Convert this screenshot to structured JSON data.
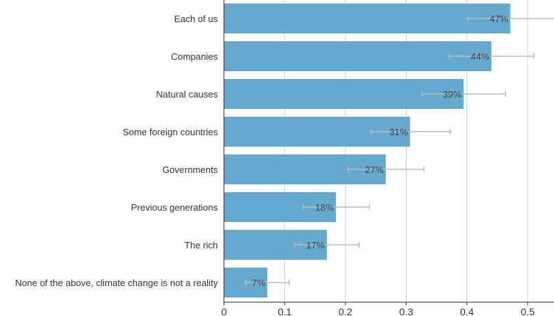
{
  "chart_data": {
    "type": "bar",
    "orientation": "horizontal",
    "categories": [
      "Each of us",
      "Companies",
      "Natural causes",
      "Some foreign countries",
      "Governments",
      "Previous generations",
      "The rich",
      "None of the above, climate change is not a reality"
    ],
    "values": [
      0.472,
      0.441,
      0.395,
      0.307,
      0.267,
      0.185,
      0.17,
      0.072
    ],
    "data_labels": [
      "47%",
      "44%",
      "39%",
      "31%",
      "27%",
      "18%",
      "17%",
      "7%"
    ],
    "error_low": [
      0.402,
      0.372,
      0.327,
      0.243,
      0.205,
      0.131,
      0.117,
      0.036
    ],
    "error_high": [
      0.545,
      0.511,
      0.464,
      0.373,
      0.33,
      0.24,
      0.223,
      0.108
    ],
    "xlim": [
      0,
      0.54
    ],
    "x_ticks": [
      0,
      0.1,
      0.2,
      0.3,
      0.4,
      0.5
    ],
    "x_tick_labels": [
      "0",
      "0.1",
      "0.2",
      "0.3",
      "0.4",
      "0.5"
    ],
    "title": "",
    "xlabel": "",
    "ylabel": "",
    "grid": "vertical",
    "colors": {
      "bar": "#65a9cf",
      "grid": "#cccccc",
      "axis": "#333333",
      "error_bar": "#bbbbbb"
    }
  }
}
